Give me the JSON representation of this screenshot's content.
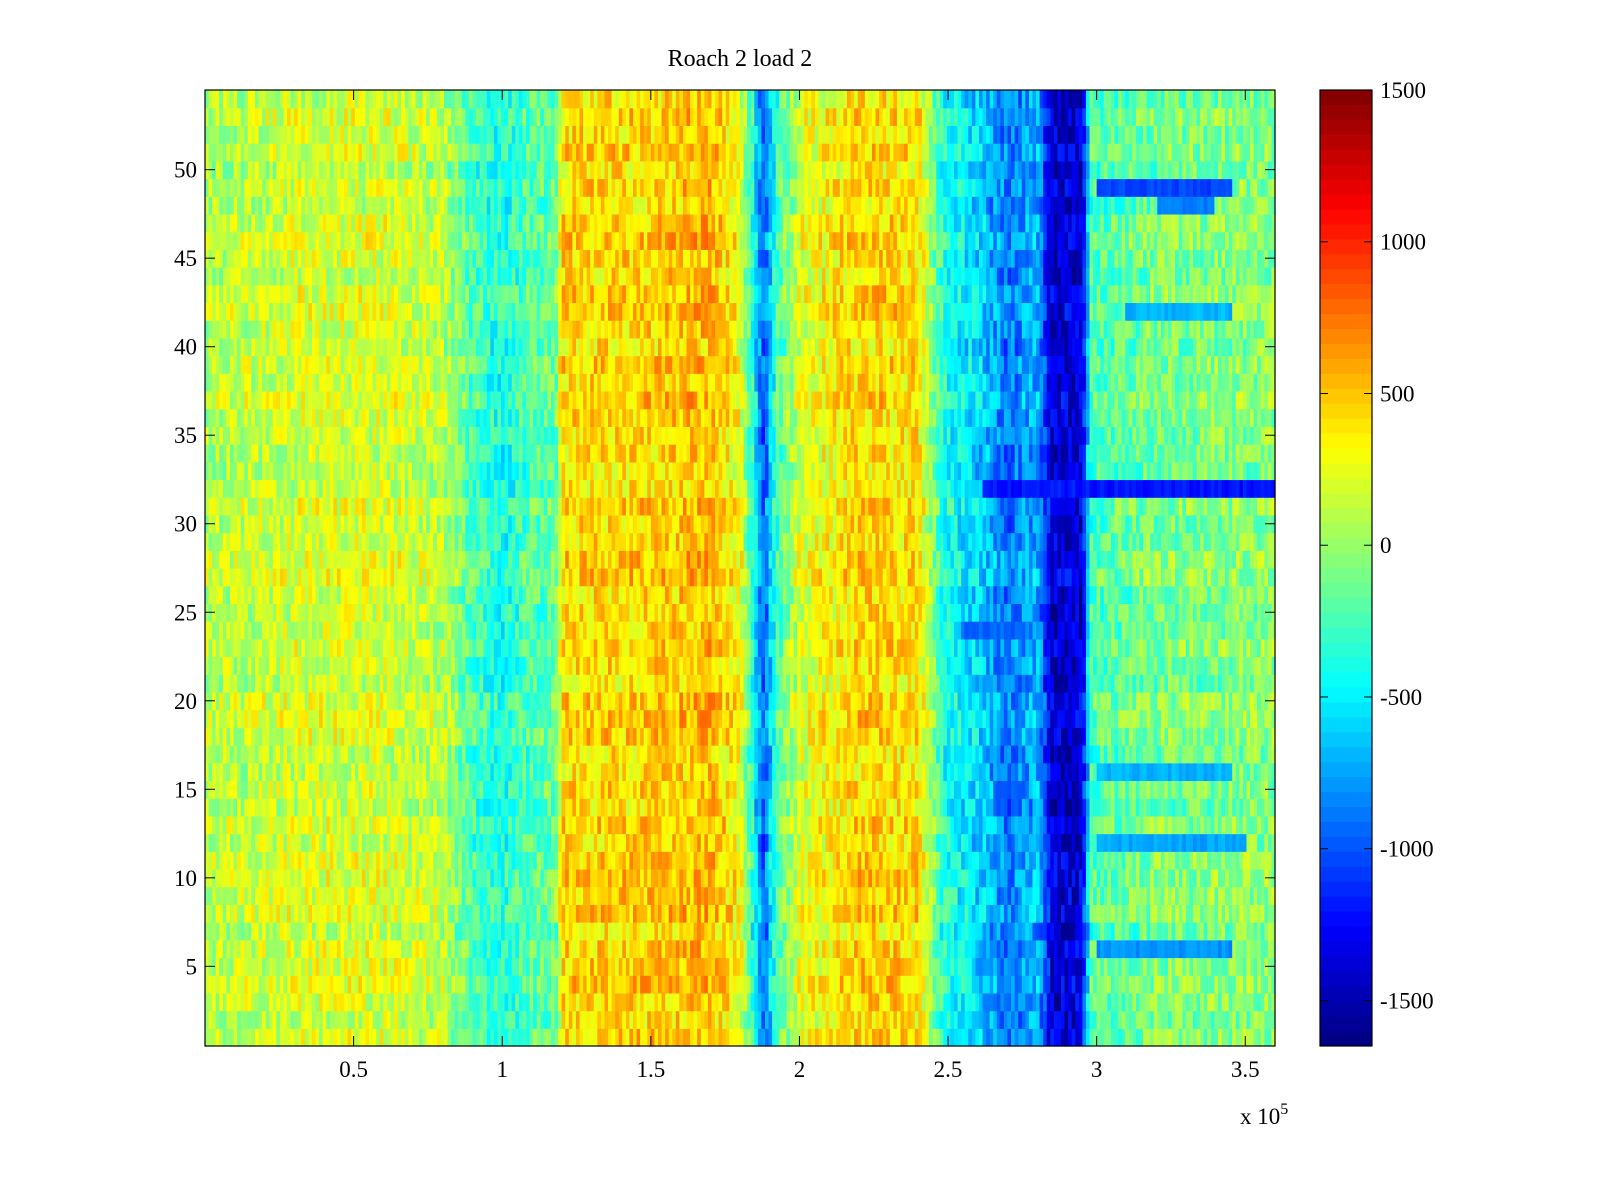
{
  "chart_data": {
    "type": "heatmap",
    "title": "Roach 2 load 2",
    "xlabel": "",
    "ylabel": "",
    "x_exponent_label": {
      "base": "x 10",
      "exponent": "5"
    },
    "xlim": [
      0,
      360000
    ],
    "ylim": [
      0.5,
      54.5
    ],
    "x_ticks": [
      50000,
      100000,
      150000,
      200000,
      250000,
      300000,
      350000
    ],
    "x_tick_labels": [
      "0.5",
      "1",
      "1.5",
      "2",
      "2.5",
      "3",
      "3.5"
    ],
    "y_ticks": [
      5,
      10,
      15,
      20,
      25,
      30,
      35,
      40,
      45,
      50
    ],
    "y_tick_labels": [
      "5",
      "10",
      "15",
      "20",
      "25",
      "30",
      "35",
      "40",
      "45",
      "50"
    ],
    "rows": 54,
    "colormap": "jet",
    "clim": [
      -1650,
      1500
    ],
    "colorbar": {
      "ticks": [
        1500,
        1000,
        500,
        0,
        -500,
        -1000,
        -1500
      ],
      "tick_labels": [
        "1500",
        "1000",
        "500",
        "0",
        "-500",
        "-1000",
        "-1500"
      ]
    },
    "column_profile": [
      {
        "x": 0,
        "value": 80
      },
      {
        "x": 30000,
        "value": 180
      },
      {
        "x": 60000,
        "value": 200
      },
      {
        "x": 80000,
        "value": 100
      },
      {
        "x": 90000,
        "value": -250
      },
      {
        "x": 100000,
        "value": -400
      },
      {
        "x": 110000,
        "value": -200
      },
      {
        "x": 118000,
        "value": -150
      },
      {
        "x": 120000,
        "value": 420
      },
      {
        "x": 150000,
        "value": 450
      },
      {
        "x": 170000,
        "value": 520
      },
      {
        "x": 180000,
        "value": 300
      },
      {
        "x": 185000,
        "value": -500
      },
      {
        "x": 188000,
        "value": -1000
      },
      {
        "x": 192000,
        "value": -300
      },
      {
        "x": 200000,
        "value": 200
      },
      {
        "x": 220000,
        "value": 450
      },
      {
        "x": 240000,
        "value": 400
      },
      {
        "x": 248000,
        "value": -350
      },
      {
        "x": 262000,
        "value": -650
      },
      {
        "x": 270000,
        "value": -900
      },
      {
        "x": 280000,
        "value": -700
      },
      {
        "x": 285000,
        "value": -1400
      },
      {
        "x": 295000,
        "value": -1400
      },
      {
        "x": 298000,
        "value": -250
      },
      {
        "x": 320000,
        "value": -100
      },
      {
        "x": 360000,
        "value": -50
      }
    ],
    "row_bands": [
      {
        "row": 32,
        "x_range": [
          262000,
          360000
        ],
        "value": -1200
      },
      {
        "row": 49,
        "x_range": [
          300000,
          345000
        ],
        "value": -1050
      },
      {
        "row": 48,
        "x_range": [
          320000,
          340000
        ],
        "value": -850
      },
      {
        "row": 42,
        "x_range": [
          310000,
          345000
        ],
        "value": -700
      },
      {
        "row": 6,
        "x_range": [
          300000,
          345000
        ],
        "value": -800
      },
      {
        "row": 12,
        "x_range": [
          300000,
          350000
        ],
        "value": -750
      },
      {
        "row": 16,
        "x_range": [
          300000,
          345000
        ],
        "value": -700
      },
      {
        "row": 24,
        "x_range": [
          255000,
          275000
        ],
        "value": -950
      },
      {
        "row": 15,
        "x_range": [
          265000,
          275000
        ],
        "value": -1000
      }
    ]
  }
}
